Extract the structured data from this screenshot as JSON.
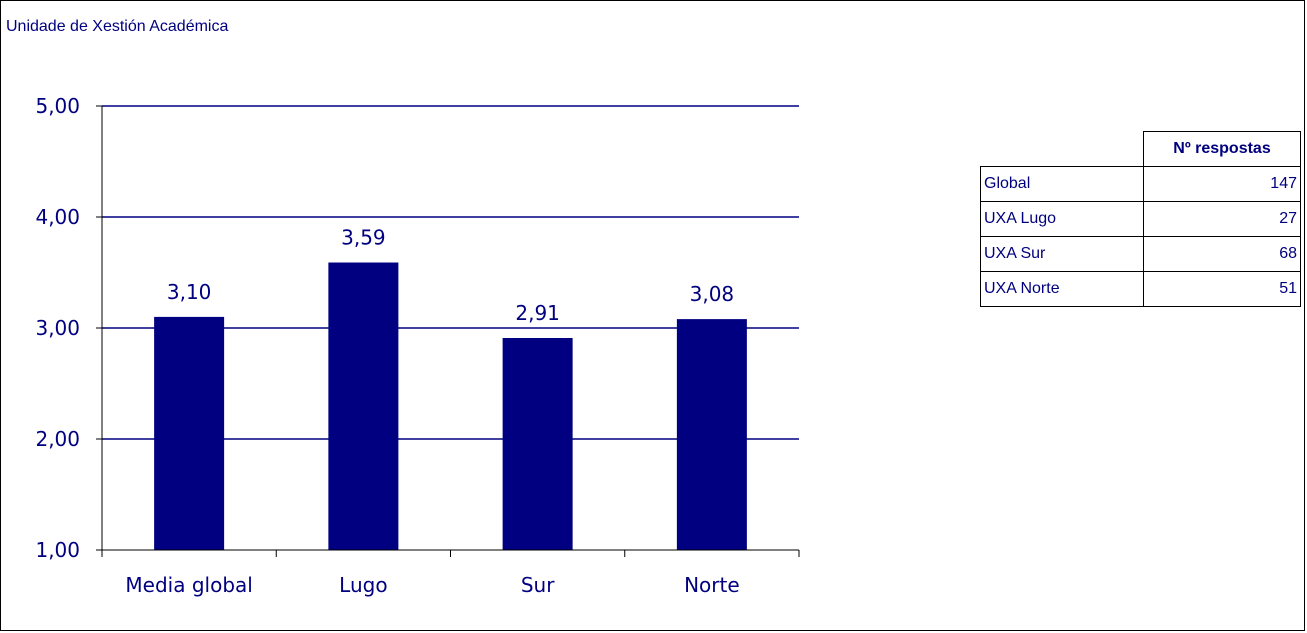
{
  "unit_title": "Unidade de Xestión Académica",
  "colors": {
    "bar": "#000080",
    "text": "#000080",
    "grid": "#000080"
  },
  "chart_data": {
    "type": "bar",
    "title": "",
    "xlabel": "",
    "ylabel": "",
    "categories": [
      "Media global",
      "Lugo",
      "Sur",
      "Norte"
    ],
    "values": [
      3.1,
      3.59,
      2.91,
      3.08
    ],
    "value_labels": [
      "3,10",
      "3,59",
      "2,91",
      "3,08"
    ],
    "ylim": [
      1,
      5
    ],
    "yticks": [
      1,
      2,
      3,
      4,
      5
    ],
    "ytick_labels": [
      "1,00",
      "2,00",
      "3,00",
      "4,00",
      "5,00"
    ],
    "grid": true,
    "legend": "none"
  },
  "responses_table": {
    "header": "Nº respostas",
    "rows": [
      {
        "label": "Global",
        "value": "147"
      },
      {
        "label": "UXA Lugo",
        "value": "27"
      },
      {
        "label": "UXA Sur",
        "value": "68"
      },
      {
        "label": "UXA Norte",
        "value": "51"
      }
    ]
  }
}
